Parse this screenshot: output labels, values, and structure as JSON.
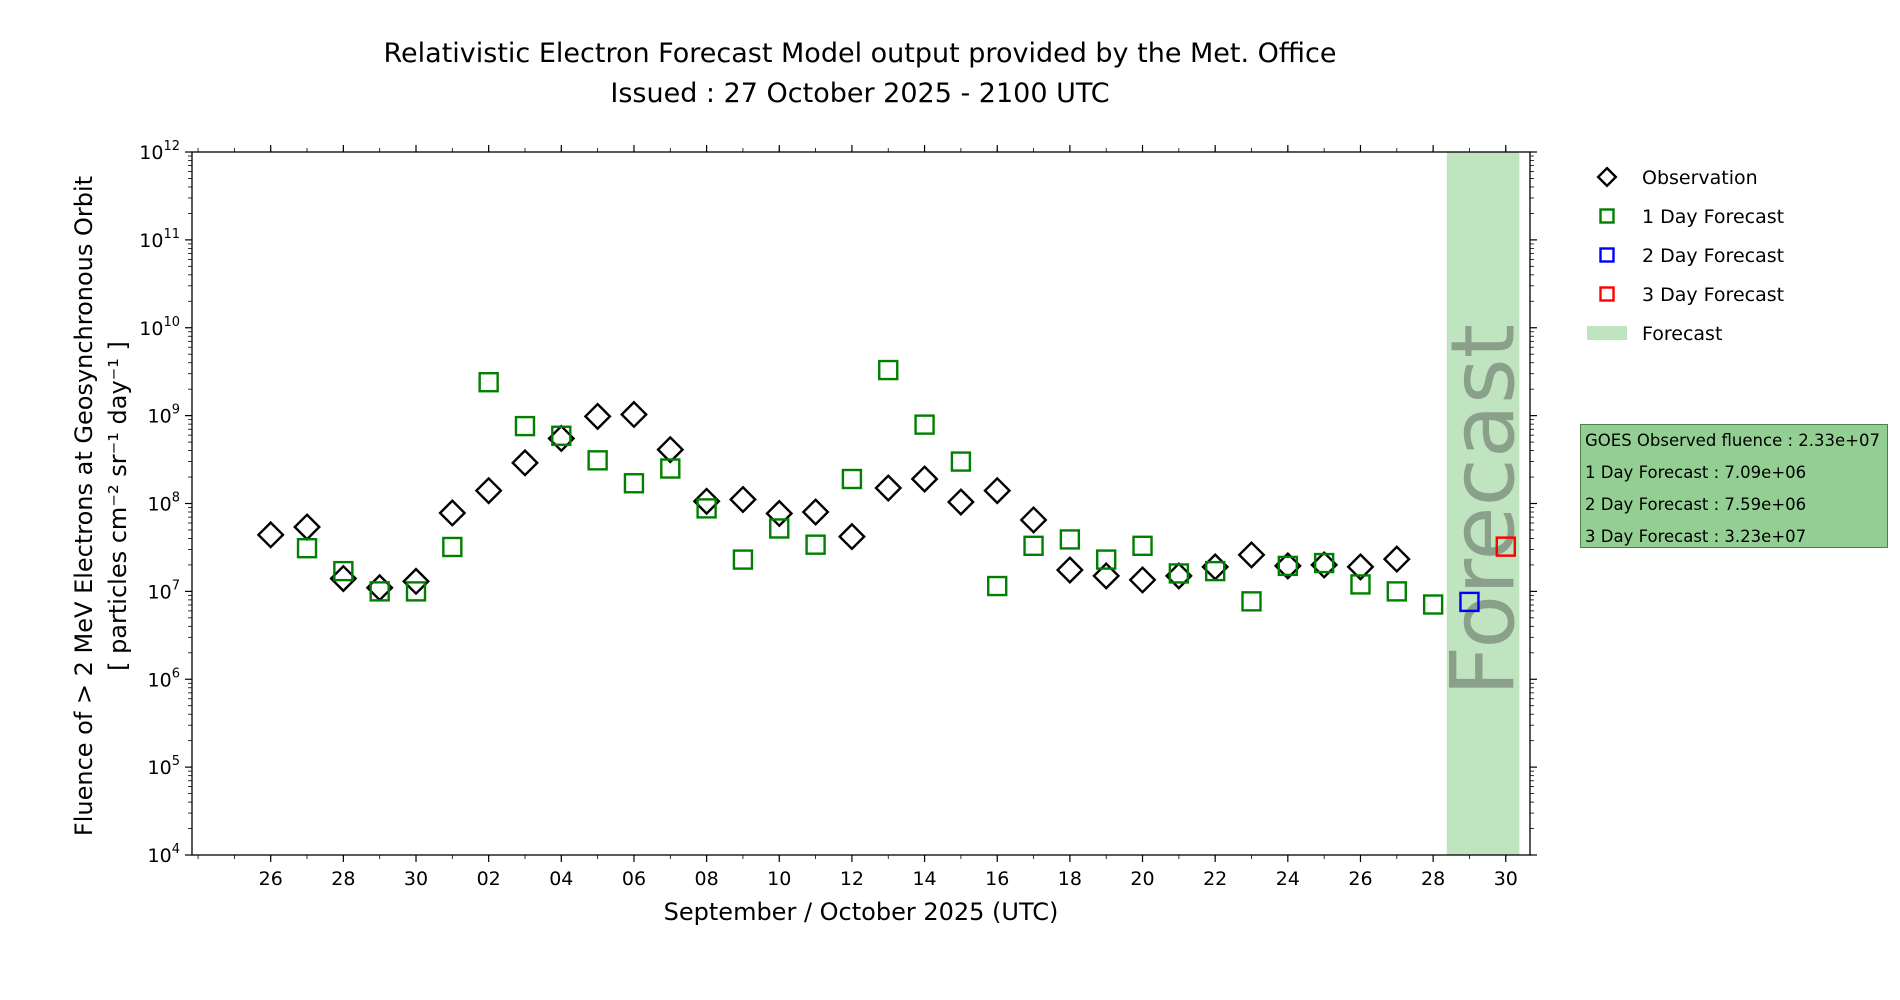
{
  "title_line1": "Relativistic Electron Forecast Model output provided by the Met. Office",
  "title_line2": "Issued : 27 October 2025 - 2100 UTC",
  "info_box": [
    "GOES Observed fluence : 2.33e+07",
    "1 Day Forecast : 7.09e+06",
    "2 Day Forecast : 7.59e+06",
    "3 Day Forecast : 3.23e+07"
  ],
  "colors": {
    "observation": "#000000",
    "day1": "#008000",
    "day2": "#0000ff",
    "day3": "#ff0000",
    "forecast_band": "#c0e4bf",
    "forecast_text": "#8aa08a",
    "info_box_bg": "#93cf93"
  },
  "chart_data": {
    "type": "scatter",
    "xlabel": "September / October 2025 (UTC)",
    "ylabel_line1": "Fluence of > 2 MeV Electrons at Geosynchronous Orbit",
    "ylabel_line2": "[ particles cm⁻² sr⁻¹ day⁻¹ ]",
    "yscale": "log",
    "ylim": [
      10000,
      1000000000000
    ],
    "xlim": [
      "2025-09-24T08:00",
      "2025-10-31T04:00"
    ],
    "y_tick_labels": [
      {
        "value": 10000,
        "base": "10",
        "exp": "4"
      },
      {
        "value": 100000,
        "base": "10",
        "exp": "5"
      },
      {
        "value": 1000000,
        "base": "10",
        "exp": "6"
      },
      {
        "value": 10000000,
        "base": "10",
        "exp": "7"
      },
      {
        "value": 100000000,
        "base": "10",
        "exp": "8"
      },
      {
        "value": 1000000000,
        "base": "10",
        "exp": "9"
      },
      {
        "value": 10000000000,
        "base": "10",
        "exp": "10"
      },
      {
        "value": 100000000000,
        "base": "10",
        "exp": "11"
      },
      {
        "value": 1000000000000,
        "base": "10",
        "exp": "12"
      }
    ],
    "x_ticks": [
      {
        "date": "2025-09-26",
        "label": "26"
      },
      {
        "date": "2025-09-28",
        "label": "28"
      },
      {
        "date": "2025-09-30",
        "label": "30"
      },
      {
        "date": "2025-10-02",
        "label": "02"
      },
      {
        "date": "2025-10-04",
        "label": "04"
      },
      {
        "date": "2025-10-06",
        "label": "06"
      },
      {
        "date": "2025-10-08",
        "label": "08"
      },
      {
        "date": "2025-10-10",
        "label": "10"
      },
      {
        "date": "2025-10-12",
        "label": "12"
      },
      {
        "date": "2025-10-14",
        "label": "14"
      },
      {
        "date": "2025-10-16",
        "label": "16"
      },
      {
        "date": "2025-10-18",
        "label": "18"
      },
      {
        "date": "2025-10-20",
        "label": "20"
      },
      {
        "date": "2025-10-22",
        "label": "22"
      },
      {
        "date": "2025-10-24",
        "label": "24"
      },
      {
        "date": "2025-10-26",
        "label": "26"
      },
      {
        "date": "2025-10-28",
        "label": "28"
      },
      {
        "date": "2025-10-30",
        "label": "30"
      }
    ],
    "forecast_band": {
      "start": "2025-10-28T21:00",
      "end": "2025-10-30T21:00",
      "label": "Forecast"
    },
    "legend": {
      "placement": "right",
      "entries": [
        {
          "label": "Observation",
          "marker": "diamond",
          "color": "#000000"
        },
        {
          "label": "1 Day Forecast",
          "marker": "square",
          "color": "#008000"
        },
        {
          "label": "2 Day Forecast",
          "marker": "square",
          "color": "#0000ff"
        },
        {
          "label": "3 Day Forecast",
          "marker": "square",
          "color": "#ff0000"
        },
        {
          "label": "Forecast",
          "marker": "band",
          "color": "#c0e4bf"
        }
      ]
    },
    "series": [
      {
        "name": "Observation",
        "marker": "diamond",
        "color": "#000000",
        "points": [
          [
            "2025-09-26",
            44000000
          ],
          [
            "2025-09-27",
            54000000
          ],
          [
            "2025-09-28",
            14000000
          ],
          [
            "2025-09-29",
            11000000
          ],
          [
            "2025-09-30",
            13000000
          ],
          [
            "2025-10-01",
            78000000
          ],
          [
            "2025-10-02",
            140000000
          ],
          [
            "2025-10-03",
            290000000
          ],
          [
            "2025-10-04",
            550000000
          ],
          [
            "2025-10-05",
            980000000
          ],
          [
            "2025-10-06",
            1030000000
          ],
          [
            "2025-10-07",
            410000000
          ],
          [
            "2025-10-08",
            106000000
          ],
          [
            "2025-10-09",
            111000000
          ],
          [
            "2025-10-10",
            77000000
          ],
          [
            "2025-10-11",
            80000000
          ],
          [
            "2025-10-12",
            42000000
          ],
          [
            "2025-10-13",
            150000000
          ],
          [
            "2025-10-14",
            190000000
          ],
          [
            "2025-10-15",
            104000000
          ],
          [
            "2025-10-16",
            140000000
          ],
          [
            "2025-10-17",
            65000000
          ],
          [
            "2025-10-18",
            17500000
          ],
          [
            "2025-10-19",
            15000000
          ],
          [
            "2025-10-20",
            13500000
          ],
          [
            "2025-10-21",
            15000000
          ],
          [
            "2025-10-22",
            19000000
          ],
          [
            "2025-10-23",
            26000000
          ],
          [
            "2025-10-24",
            19500000
          ],
          [
            "2025-10-25",
            20000000
          ],
          [
            "2025-10-26",
            19000000
          ],
          [
            "2025-10-27",
            23300000
          ]
        ]
      },
      {
        "name": "1 Day Forecast",
        "marker": "square",
        "color": "#008000",
        "points": [
          [
            "2025-09-27",
            31000000
          ],
          [
            "2025-09-28",
            17000000
          ],
          [
            "2025-09-29",
            10000000
          ],
          [
            "2025-09-30",
            10000000
          ],
          [
            "2025-10-01",
            32000000
          ],
          [
            "2025-10-02",
            2400000000
          ],
          [
            "2025-10-03",
            760000000
          ],
          [
            "2025-10-04",
            590000000
          ],
          [
            "2025-10-05",
            310000000
          ],
          [
            "2025-10-06",
            170000000
          ],
          [
            "2025-10-07",
            250000000
          ],
          [
            "2025-10-08",
            88000000
          ],
          [
            "2025-10-09",
            23000000
          ],
          [
            "2025-10-10",
            52000000
          ],
          [
            "2025-10-11",
            34000000
          ],
          [
            "2025-10-12",
            190000000
          ],
          [
            "2025-10-13",
            3300000000
          ],
          [
            "2025-10-14",
            790000000
          ],
          [
            "2025-10-15",
            300000000
          ],
          [
            "2025-10-16",
            11500000
          ],
          [
            "2025-10-17",
            33000000
          ],
          [
            "2025-10-18",
            39000000
          ],
          [
            "2025-10-19",
            23000000
          ],
          [
            "2025-10-20",
            33000000
          ],
          [
            "2025-10-21",
            16000000
          ],
          [
            "2025-10-22",
            17000000
          ],
          [
            "2025-10-23",
            7700000
          ],
          [
            "2025-10-24",
            19500000
          ],
          [
            "2025-10-25",
            21000000
          ],
          [
            "2025-10-26",
            12000000
          ],
          [
            "2025-10-27",
            10000000
          ],
          [
            "2025-10-28",
            7090000
          ]
        ]
      },
      {
        "name": "2 Day Forecast",
        "marker": "square",
        "color": "#0000ff",
        "points": [
          [
            "2025-10-29",
            7590000
          ]
        ]
      },
      {
        "name": "3 Day Forecast",
        "marker": "square",
        "color": "#ff0000",
        "points": [
          [
            "2025-10-30",
            32300000
          ]
        ]
      }
    ]
  }
}
